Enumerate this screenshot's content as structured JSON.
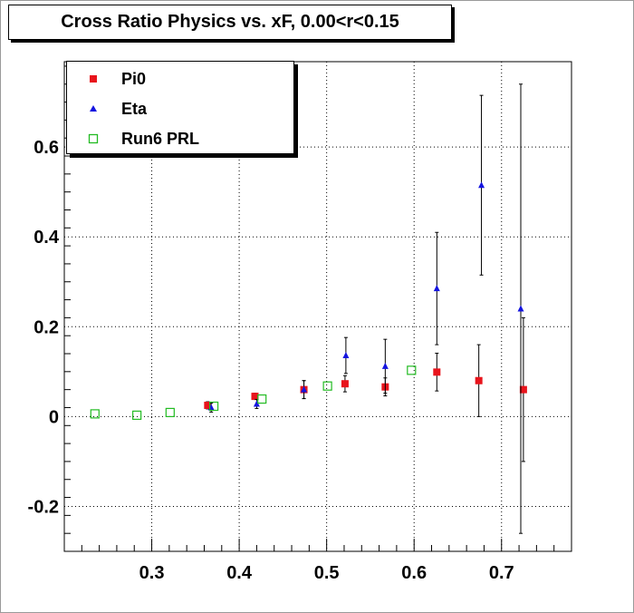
{
  "chart_data": {
    "type": "scatter",
    "title": "Cross Ratio Physics vs. xF, 0.00<r<0.15",
    "xlim": [
      0.2,
      0.78
    ],
    "ylim": [
      -0.3,
      0.79
    ],
    "x_ticks": [
      0.3,
      0.4,
      0.5,
      0.6,
      0.7
    ],
    "x_tick_labels": [
      "0.3",
      "0.4",
      "0.5",
      "0.6",
      "0.7"
    ],
    "y_ticks": [
      -0.2,
      0,
      0.2,
      0.4,
      0.6
    ],
    "y_tick_labels": [
      "-0.2",
      "0",
      "0.2",
      "0.4",
      "0.6"
    ],
    "grid": true,
    "legend_position": "top-left",
    "series": [
      {
        "name": "Pi0",
        "marker": "filled-square",
        "color": "#e8141c",
        "points": [
          {
            "x": 0.364,
            "y": 0.025,
            "err": 0.008
          },
          {
            "x": 0.418,
            "y": 0.045,
            "err": 0.007
          },
          {
            "x": 0.474,
            "y": 0.06,
            "err": 0.02
          },
          {
            "x": 0.521,
            "y": 0.073,
            "err": 0.018
          },
          {
            "x": 0.567,
            "y": 0.066,
            "err": 0.02
          },
          {
            "x": 0.626,
            "y": 0.099,
            "err": 0.042
          },
          {
            "x": 0.674,
            "y": 0.08,
            "err": 0.08
          },
          {
            "x": 0.725,
            "y": 0.06,
            "err": 0.16
          }
        ]
      },
      {
        "name": "Eta",
        "marker": "filled-triangle",
        "color": "#1414e0",
        "points": [
          {
            "x": 0.368,
            "y": 0.02,
            "err": 0.01
          },
          {
            "x": 0.42,
            "y": 0.028,
            "err": 0.01
          },
          {
            "x": 0.474,
            "y": 0.06,
            "err": 0.02
          },
          {
            "x": 0.522,
            "y": 0.136,
            "err": 0.04
          },
          {
            "x": 0.567,
            "y": 0.112,
            "err": 0.06
          },
          {
            "x": 0.626,
            "y": 0.285,
            "err": 0.125
          },
          {
            "x": 0.677,
            "y": 0.515,
            "err": 0.2
          },
          {
            "x": 0.722,
            "y": 0.24,
            "err": 0.5
          }
        ]
      },
      {
        "name": "Run6 PRL",
        "marker": "open-square",
        "color": "#22bb22",
        "points": [
          {
            "x": 0.235,
            "y": 0.006
          },
          {
            "x": 0.283,
            "y": 0.003
          },
          {
            "x": 0.321,
            "y": 0.009
          },
          {
            "x": 0.371,
            "y": 0.023
          },
          {
            "x": 0.426,
            "y": 0.039
          },
          {
            "x": 0.501,
            "y": 0.068
          },
          {
            "x": 0.597,
            "y": 0.103
          }
        ]
      }
    ]
  }
}
